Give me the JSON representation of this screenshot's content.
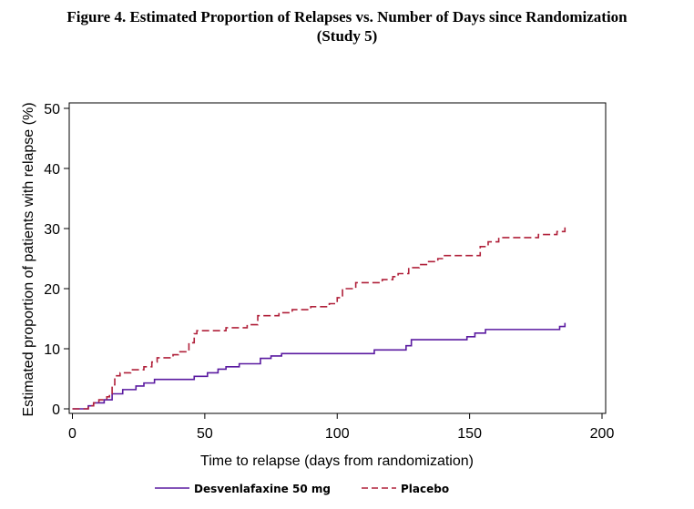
{
  "figure": {
    "title_line1": "Figure 4. Estimated Proportion of Relapses vs. Number of Days since Randomization",
    "title_line2": "(Study 5)"
  },
  "chart_data": {
    "type": "line",
    "subtype": "step (Kaplan-Meier cumulative incidence)",
    "title": "Figure 4. Estimated Proportion of Relapses vs. Number of Days since Randomization (Study 5)",
    "xlabel": "Time to relapse (days from randomization)",
    "ylabel": "Estimated proportion of patients with relapse (%)",
    "xlim": [
      0,
      200
    ],
    "ylim": [
      0,
      50
    ],
    "xticks": [
      0,
      50,
      100,
      150,
      200
    ],
    "yticks": [
      0,
      10,
      20,
      30,
      40,
      50
    ],
    "grid": false,
    "legend_position": "bottom",
    "series": [
      {
        "name": "Desvenlafaxine 50 mg",
        "color": "#5a1aa0",
        "line_style": "solid",
        "x": [
          0,
          6,
          8,
          12,
          15,
          19,
          24,
          27,
          31,
          46,
          51,
          55,
          58,
          63,
          71,
          75,
          79,
          114,
          126,
          128,
          149,
          152,
          156,
          184,
          186
        ],
        "y": [
          0,
          0.5,
          1.0,
          1.5,
          2.5,
          3.2,
          3.8,
          4.3,
          4.9,
          5.4,
          6.0,
          6.6,
          7.0,
          7.5,
          8.4,
          8.8,
          9.2,
          9.8,
          10.5,
          11.5,
          12.0,
          12.6,
          13.2,
          13.7,
          14.3
        ]
      },
      {
        "name": "Placebo",
        "color": "#b0203a",
        "line_style": "dashed",
        "x": [
          0,
          6,
          8,
          10,
          13,
          14,
          15,
          16,
          18,
          22,
          27,
          30,
          32,
          38,
          40,
          44,
          46,
          47,
          58,
          66,
          70,
          78,
          83,
          90,
          97,
          100,
          102,
          107,
          117,
          121,
          123,
          127,
          131,
          134,
          138,
          140,
          154,
          157,
          161,
          176,
          183,
          186
        ],
        "y": [
          0,
          0.5,
          1.0,
          1.5,
          2.0,
          2.5,
          4.0,
          5.5,
          6.0,
          6.5,
          7.0,
          7.8,
          8.5,
          9.0,
          9.5,
          11.0,
          12.5,
          13.0,
          13.5,
          14.0,
          15.5,
          16.0,
          16.5,
          17.0,
          17.5,
          18.5,
          20.0,
          21.0,
          21.5,
          22.0,
          22.5,
          23.5,
          24.0,
          24.5,
          25.0,
          25.5,
          27.0,
          27.8,
          28.5,
          29.0,
          29.5,
          30.5
        ]
      }
    ]
  }
}
